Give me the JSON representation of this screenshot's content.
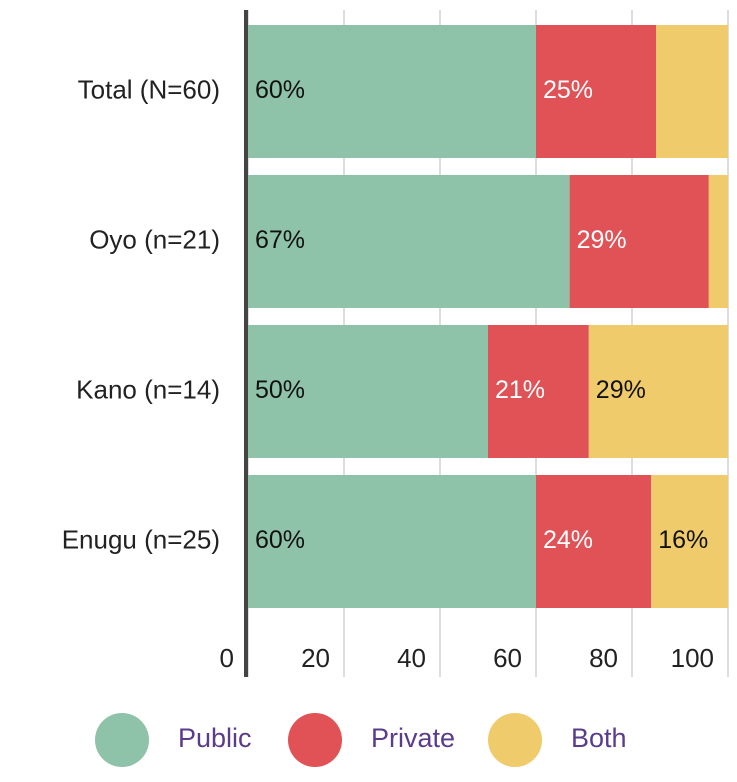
{
  "chart_data": {
    "type": "stacked_bar_horizontal",
    "categories": [
      "Total (N=60)",
      "Oyo (n=21)",
      "Kano (n=14)",
      "Enugu (n=25)"
    ],
    "series": [
      {
        "name": "Public",
        "color": "#8fc3a9",
        "values": [
          60,
          67,
          50,
          60
        ],
        "value_labels": [
          "60%",
          "67%",
          "50%",
          "60%"
        ]
      },
      {
        "name": "Private",
        "color": "#e05256",
        "values": [
          25,
          29,
          21,
          24
        ],
        "value_labels": [
          "25%",
          "29%",
          "21%",
          "24%"
        ]
      },
      {
        "name": "Both",
        "color": "#f0cb6b",
        "values": [
          15,
          4,
          29,
          16
        ],
        "value_labels": [
          null,
          null,
          "29%",
          "16%"
        ]
      }
    ],
    "xlim": [
      0,
      100
    ],
    "xticks": [
      0,
      20,
      40,
      60,
      80,
      100
    ],
    "grid": true,
    "legend": "bottom"
  }
}
